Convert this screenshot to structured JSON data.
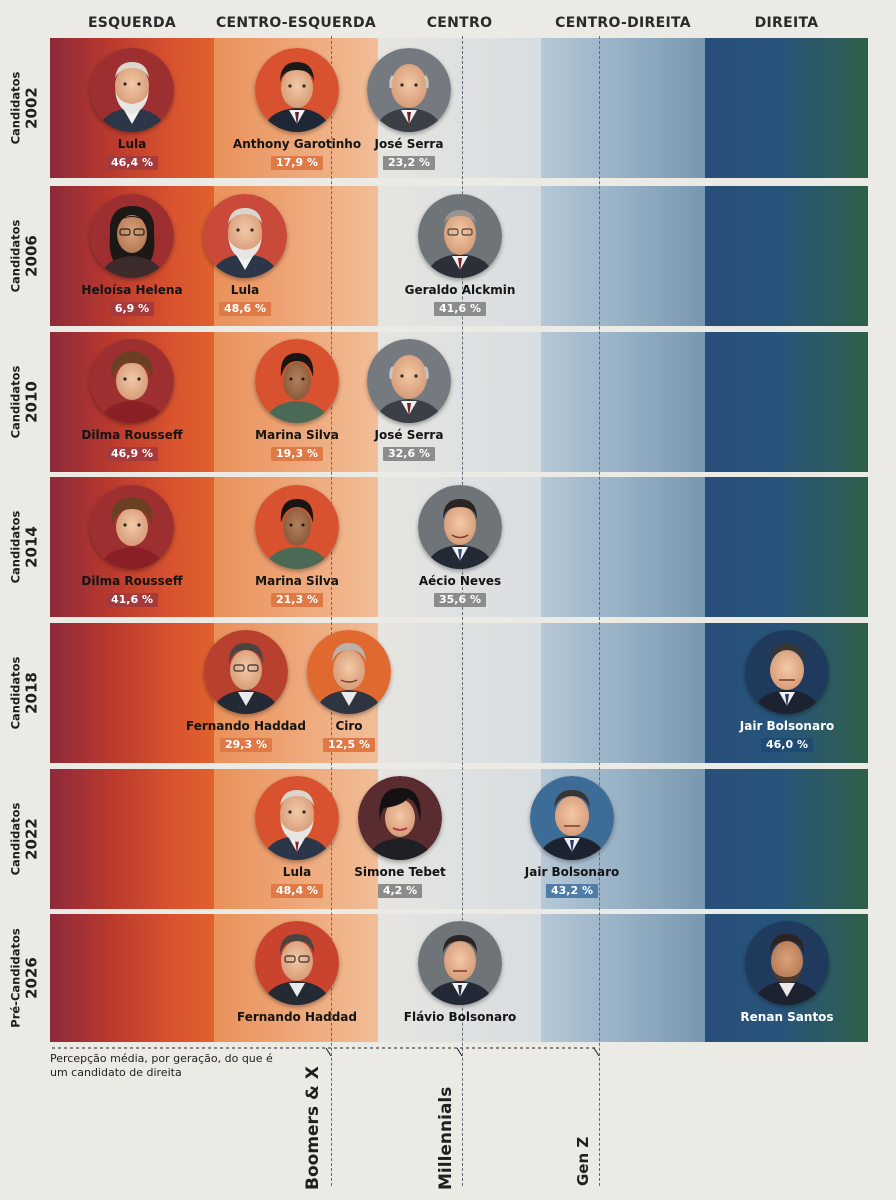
{
  "columns": [
    "ESQUERDA",
    "CENTRO-ESQUERDA",
    "CENTRO",
    "CENTRO-DIREITA",
    "DIREITA"
  ],
  "rows": [
    {
      "label_line1": "Candidatos",
      "label_line2": "2002",
      "candidates": [
        {
          "name": "Lula",
          "pct": "46,4 %",
          "column": "ESQUERDA"
        },
        {
          "name": "Anthony Garotinho",
          "pct": "17,9 %",
          "column": "CENTRO-ESQUERDA"
        },
        {
          "name": "José Serra",
          "pct": "23,2 %",
          "column": "CENTRO"
        }
      ]
    },
    {
      "label_line1": "Candidatos",
      "label_line2": "2006",
      "candidates": [
        {
          "name": "Heloísa Helena",
          "pct": "6,9 %",
          "column": "ESQUERDA"
        },
        {
          "name": "Lula",
          "pct": "48,6 %",
          "column": "CENTRO-ESQUERDA"
        },
        {
          "name": "Geraldo Alckmin",
          "pct": "41,6 %",
          "column": "CENTRO"
        }
      ]
    },
    {
      "label_line1": "Candidatos",
      "label_line2": "2010",
      "candidates": [
        {
          "name": "Dilma Rousseff",
          "pct": "46,9 %",
          "column": "ESQUERDA"
        },
        {
          "name": "Marina Silva",
          "pct": "19,3 %",
          "column": "CENTRO-ESQUERDA"
        },
        {
          "name": "José Serra",
          "pct": "32,6 %",
          "column": "CENTRO"
        }
      ]
    },
    {
      "label_line1": "Candidatos",
      "label_line2": "2014",
      "candidates": [
        {
          "name": "Dilma Rousseff",
          "pct": "41,6 %",
          "column": "ESQUERDA"
        },
        {
          "name": "Marina Silva",
          "pct": "21,3 %",
          "column": "CENTRO-ESQUERDA"
        },
        {
          "name": "Aécio Neves",
          "pct": "35,6 %",
          "column": "CENTRO"
        }
      ]
    },
    {
      "label_line1": "Candidatos",
      "label_line2": "2018",
      "candidates": [
        {
          "name": "Fernando Haddad",
          "pct": "29,3 %",
          "column": "ESQUERDA / CENTRO-ESQUERDA"
        },
        {
          "name": "Ciro",
          "pct": "12,5 %",
          "column": "CENTRO-ESQUERDA"
        },
        {
          "name": "Jair Bolsonaro",
          "pct": "46,0 %",
          "column": "DIREITA"
        }
      ]
    },
    {
      "label_line1": "Candidatos",
      "label_line2": "2022",
      "candidates": [
        {
          "name": "Lula",
          "pct": "48,4 %",
          "column": "CENTRO-ESQUERDA"
        },
        {
          "name": "Simone Tebet",
          "pct": "4,2 %",
          "column": "CENTRO"
        },
        {
          "name": "Jair Bolsonaro",
          "pct": "43,2 %",
          "column": "CENTRO-DIREITA"
        }
      ]
    },
    {
      "label_line1": "Pré-Candidatos",
      "label_line2": "2026",
      "candidates": [
        {
          "name": "Fernando Haddad",
          "column": "CENTRO-ESQUERDA"
        },
        {
          "name": "Flávio Bolsonaro",
          "column": "CENTRO"
        },
        {
          "name": "Renan Santos",
          "column": "DIREITA"
        }
      ]
    }
  ],
  "note": "Percepção média, por geração, do que é um candidato de direita",
  "generations": [
    "Boomers & X",
    "Millennials",
    "Gen Z"
  ],
  "colors": {
    "esquerda": "#b7382e",
    "centro_esquerda": "#eea475",
    "centro": "#dfe1e2",
    "centro_direita": "#93aec3",
    "direita": "#27547a",
    "badge_left": "#a53a3d",
    "badge_center_left": "#df7a47",
    "badge_center": "#8c8c8c",
    "badge_center_right": "#4f7da6",
    "badge_right": "#1f4a73"
  },
  "icons": [
    "portrait-lula",
    "portrait-garotinho",
    "portrait-serra",
    "portrait-heloisa",
    "portrait-alckmin",
    "portrait-dilma",
    "portrait-marina",
    "portrait-aecio",
    "portrait-haddad",
    "portrait-ciro",
    "portrait-bolsonaro",
    "portrait-tebet",
    "portrait-flavio",
    "portrait-renan"
  ]
}
